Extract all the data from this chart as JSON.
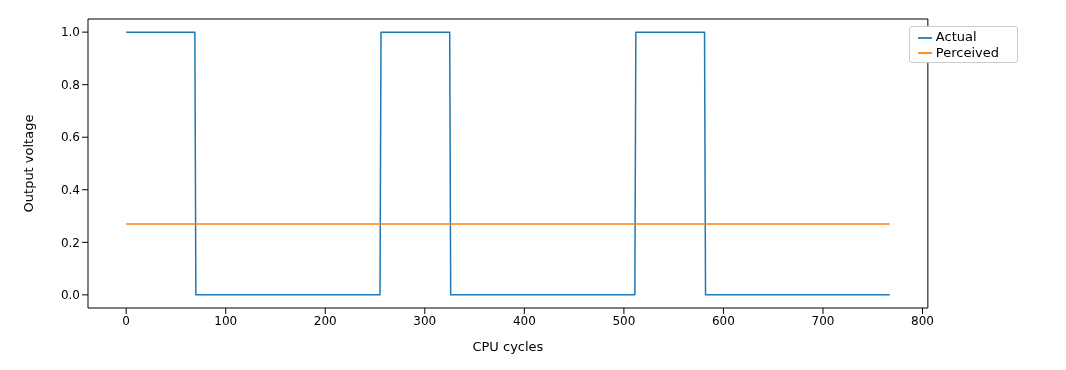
{
  "chart_data": {
    "type": "line",
    "xlabel": "CPU cycles",
    "ylabel": "Output voltage",
    "series": [
      {
        "name": "Actual",
        "color": "#1f77b4",
        "x": [
          0,
          69,
          70,
          255,
          256,
          325,
          326,
          511,
          512,
          581,
          582,
          767
        ],
        "values": [
          1,
          1,
          0,
          0,
          1,
          1,
          0,
          0,
          1,
          1,
          0,
          0
        ]
      },
      {
        "name": "Perceived",
        "color": "#ff7f0e",
        "x": [
          0,
          767
        ],
        "values": [
          0.27,
          0.27
        ]
      }
    ],
    "xlim": [
      -38.35,
      805.35
    ],
    "xticks": [
      0,
      100,
      200,
      300,
      400,
      500,
      600,
      700,
      800
    ],
    "ylim": [
      -0.05,
      1.05
    ],
    "yticks": [
      {
        "value": 0,
        "label": "0.0"
      },
      {
        "value": 0.2,
        "label": "0.2"
      },
      {
        "value": 0.4,
        "label": "0.4"
      },
      {
        "value": 0.6,
        "label": "0.6"
      },
      {
        "value": 0.8,
        "label": "0.8"
      },
      {
        "value": 1,
        "label": "1.0"
      }
    ],
    "grid": false,
    "legend": "top right",
    "marker": "none",
    "line_style": "solid"
  }
}
